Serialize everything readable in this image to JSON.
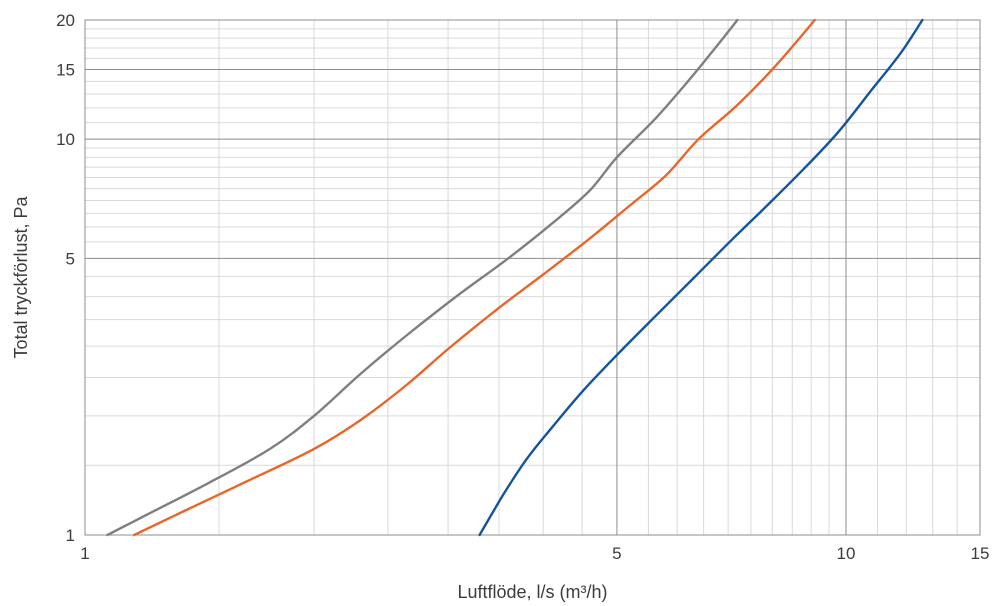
{
  "chart_data": {
    "type": "line",
    "xlabel": "Luftflöde, l/s (m³/h)",
    "ylabel": "Total tryckförlust, Pa",
    "xscale": "log",
    "yscale": "log",
    "xlim": [
      1,
      15
    ],
    "ylim": [
      1,
      20
    ],
    "x_ticks": [
      1,
      5,
      10,
      15
    ],
    "y_ticks": [
      1,
      5,
      10,
      15,
      20
    ],
    "grid": true,
    "colors": {
      "grid_major": "#8c8c8c",
      "grid_minor": "#d9d9d9",
      "text": "#3c3c3c"
    },
    "series": [
      {
        "color": "#7f7f7f",
        "x": [
          1.07,
          1.2,
          1.45,
          1.75,
          2.0,
          2.3,
          2.65,
          3.1,
          3.6,
          4.1,
          4.6,
          5.0,
          5.6,
          6.2,
          6.7,
          7.2
        ],
        "y": [
          1.0,
          1.12,
          1.35,
          1.65,
          2.0,
          2.55,
          3.2,
          4.05,
          5.0,
          6.1,
          7.4,
          9.0,
          11.2,
          14.0,
          16.8,
          20.0
        ]
      },
      {
        "color": "#e8662a",
        "x": [
          1.16,
          1.35,
          1.65,
          2.0,
          2.3,
          2.65,
          3.0,
          3.5,
          4.0,
          4.6,
          5.2,
          5.8,
          6.4,
          7.2,
          8.1,
          9.1
        ],
        "y": [
          1.0,
          1.15,
          1.38,
          1.65,
          1.95,
          2.4,
          2.95,
          3.75,
          4.55,
          5.6,
          6.8,
          8.1,
          10.0,
          12.2,
          15.4,
          20.0
        ]
      },
      {
        "color": "#14549e",
        "x": [
          3.3,
          3.55,
          3.8,
          4.1,
          4.5,
          5.0,
          5.6,
          6.3,
          7.1,
          8.0,
          8.9,
          9.8,
          10.8,
          11.8,
          12.6
        ],
        "y": [
          1.0,
          1.27,
          1.55,
          1.86,
          2.3,
          2.85,
          3.55,
          4.45,
          5.6,
          7.0,
          8.6,
          10.5,
          13.3,
          16.5,
          20.0
        ]
      }
    ]
  }
}
